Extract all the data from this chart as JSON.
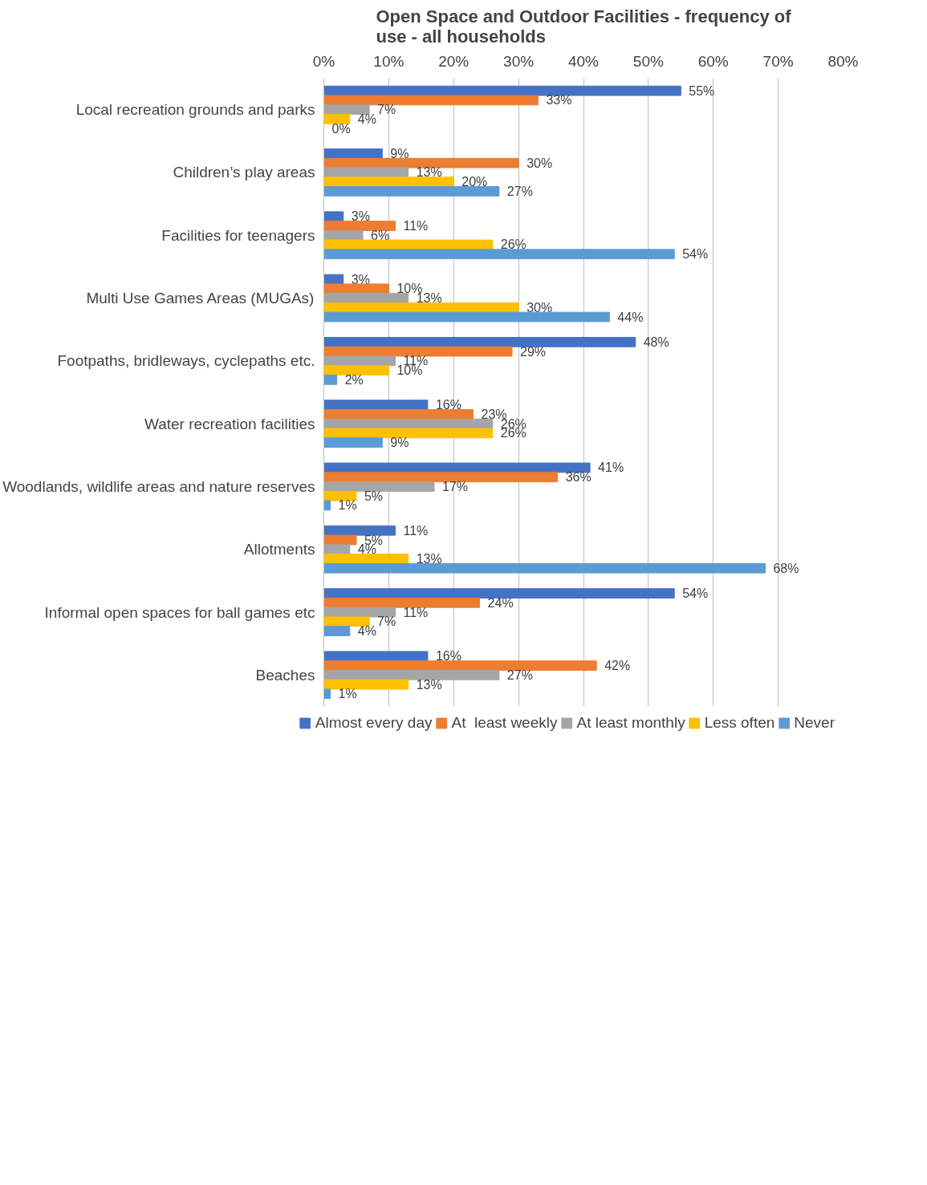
{
  "chart_data": {
    "type": "bar",
    "orientation": "horizontal",
    "title": "Open Space and Outdoor Facilities - frequency of use - all households",
    "categories": [
      "Local recreation grounds and parks",
      "Children’s play areas",
      "Facilities for teenagers",
      "Multi Use Games Areas (MUGAs)",
      "Footpaths, bridleways, cyclepaths etc.",
      "Water recreation facilities",
      "Woodlands, wildlife areas and nature reserves",
      "Allotments",
      "Informal open spaces for ball games etc",
      "Beaches"
    ],
    "series": [
      {
        "name": "Almost every day",
        "color": "#4472c4",
        "values": [
          55,
          9,
          3,
          3,
          48,
          16,
          41,
          11,
          54,
          16
        ],
        "value_labels": [
          "55%",
          "9%",
          "3%",
          "3%",
          "48%",
          "16%",
          "41%",
          "11%",
          "54%",
          "16%"
        ]
      },
      {
        "name": "At  least weekly",
        "color": "#ed7d31",
        "values": [
          33,
          30,
          11,
          10,
          29,
          23,
          36,
          5,
          24,
          42
        ],
        "value_labels": [
          "33%",
          "30%",
          "11%",
          "10%",
          "29%",
          "23%",
          "36%",
          "5%",
          "24%",
          "42%"
        ]
      },
      {
        "name": "At least monthly",
        "color": "#a5a5a5",
        "values": [
          7,
          13,
          6,
          13,
          11,
          26,
          17,
          4,
          11,
          27
        ],
        "value_labels": [
          "7%",
          "13%",
          "6%",
          "13%",
          "11%",
          "26%",
          "17%",
          "4%",
          "11%",
          "27%"
        ]
      },
      {
        "name": "Less often",
        "color": "#ffc000",
        "values": [
          4,
          20,
          26,
          30,
          10,
          26,
          5,
          13,
          7,
          13
        ],
        "value_labels": [
          "4%",
          "20%",
          "26%",
          "30%",
          "10%",
          "26%",
          "5%",
          "13%",
          "7%",
          "13%"
        ]
      },
      {
        "name": "Never",
        "color": "#5b9bd5",
        "values": [
          0,
          27,
          54,
          44,
          2,
          9,
          1,
          68,
          4,
          1
        ],
        "value_labels": [
          "0%",
          "27%",
          "54%",
          "44%",
          "2%",
          "9%",
          "1%",
          "68%",
          "4%",
          "1%"
        ]
      }
    ],
    "xlim": [
      0,
      80
    ],
    "xticks": [
      {
        "value": 0,
        "label": "0%"
      },
      {
        "value": 10,
        "label": "10%"
      },
      {
        "value": 20,
        "label": "20%"
      },
      {
        "value": 30,
        "label": "30%"
      },
      {
        "value": 40,
        "label": "40%"
      },
      {
        "value": 50,
        "label": "50%"
      },
      {
        "value": 60,
        "label": "60%"
      },
      {
        "value": 70,
        "label": "70%"
      },
      {
        "value": 80,
        "label": "80%"
      }
    ],
    "grid": "x",
    "legend": "bottom"
  }
}
